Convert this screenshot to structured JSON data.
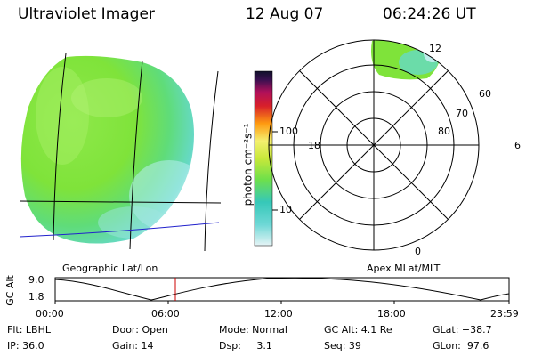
{
  "header": {
    "instrument": "Ultraviolet Imager",
    "date": "12 Aug 07",
    "time": "06:24:26 UT"
  },
  "colorbar": {
    "unit_label": "photon cm⁻²s⁻¹",
    "tick_100": "100",
    "tick_10": "10"
  },
  "left_panel": {
    "caption": "Geographic Lat/Lon"
  },
  "right_panel": {
    "caption": "Apex MLat/MLT",
    "mlt_labels": {
      "top": "12",
      "left": "18",
      "right": "6",
      "bottom": "0"
    },
    "lat_labels": {
      "l60": "60",
      "l70": "70",
      "l80": "80"
    }
  },
  "timeline": {
    "ylabel": "GC Alt",
    "ymax": "9.0",
    "ymin": "1.8",
    "xticks": [
      "00:00",
      "06:00",
      "12:00",
      "18:00",
      "23:59"
    ],
    "current_time_marker": "06:24:26"
  },
  "status": {
    "flt": "Flt: LBHL",
    "door": "Door: Open",
    "mode": "Mode: Normal",
    "gc_alt": "GC Alt: 4.1 Re",
    "glat": "GLat: −38.7",
    "ip": "IP: 36.0",
    "gain": "Gain: 14",
    "dsp": "Dsp:     3.1",
    "seq": "Seq: 39",
    "glon": "GLon:  97.6"
  },
  "colors": {
    "earth_green": "#7fe33a",
    "earth_light": "#a8f07a",
    "earth_cyan": "#4fd3c6",
    "earth_pale": "#d8f1f3",
    "trace_color": "#000000",
    "marker_red": "#cc0000",
    "equator_blue": "#2222cc"
  }
}
